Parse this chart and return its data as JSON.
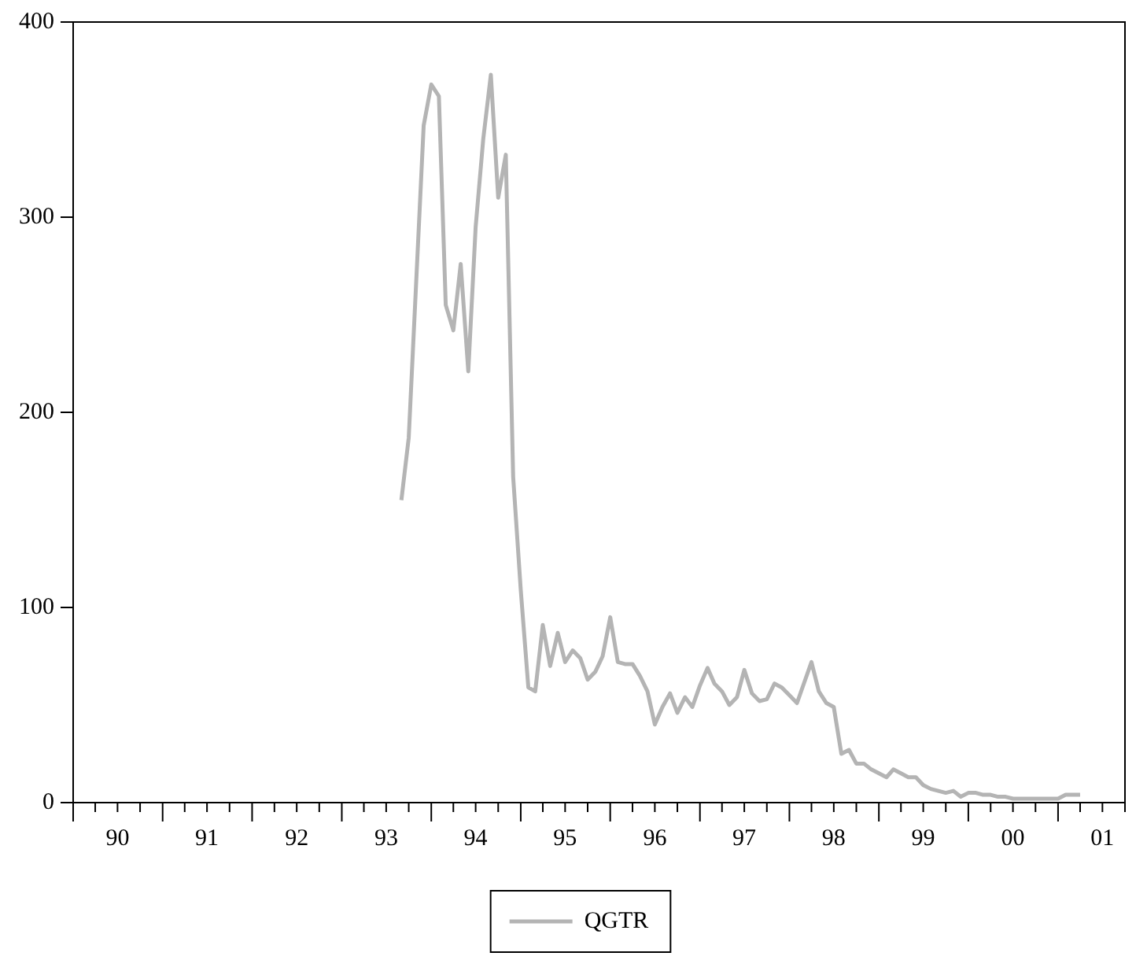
{
  "chart_data": {
    "type": "line",
    "x": [
      "1993-09",
      "1993-10",
      "1993-12",
      "1994-01",
      "1994-02",
      "1994-03",
      "1994-04",
      "1994-05",
      "1994-06",
      "1994-07",
      "1994-08",
      "1994-09",
      "1994-10",
      "1994-11",
      "1994-12",
      "1995-01",
      "1995-02",
      "1995-03",
      "1995-04",
      "1995-05",
      "1995-06",
      "1995-07",
      "1995-08",
      "1995-09",
      "1995-10",
      "1995-11",
      "1995-12",
      "1996-01",
      "1996-02",
      "1996-03",
      "1996-04",
      "1996-05",
      "1996-06",
      "1996-07",
      "1996-08",
      "1996-09",
      "1996-10",
      "1996-11",
      "1996-12",
      "1997-01",
      "1997-02",
      "1997-03",
      "1997-04",
      "1997-05",
      "1997-06",
      "1997-07",
      "1997-08",
      "1997-09",
      "1997-10",
      "1997-11",
      "1997-12",
      "1998-01",
      "1998-02",
      "1998-03",
      "1998-04",
      "1998-05",
      "1998-06",
      "1998-07",
      "1998-08",
      "1998-09",
      "1998-10",
      "1998-11",
      "1998-12",
      "1999-01",
      "1999-02",
      "1999-03",
      "1999-04",
      "1999-05",
      "1999-06",
      "1999-07",
      "1999-08",
      "1999-10",
      "1999-11",
      "1999-12",
      "2000-01",
      "2000-02",
      "2000-03",
      "2000-04",
      "2000-05",
      "2000-06",
      "2000-07",
      "2000-09",
      "2000-10",
      "2000-12",
      "2001-01",
      "2001-02",
      "2001-03",
      "2001-04"
    ],
    "series": [
      {
        "name": "QGTR",
        "color": "#b4b4b4",
        "values": [
          155,
          187,
          347,
          368,
          362,
          255,
          242,
          276,
          221,
          295,
          340,
          373,
          310,
          332,
          167,
          109,
          59,
          57,
          91,
          70,
          87,
          72,
          78,
          74,
          63,
          67,
          75,
          95,
          72,
          71,
          71,
          65,
          57,
          40,
          49,
          56,
          46,
          54,
          49,
          60,
          69,
          61,
          57,
          50,
          54,
          68,
          56,
          52,
          53,
          61,
          59,
          55,
          51,
          61,
          72,
          57,
          51,
          49,
          25,
          27,
          20,
          20,
          17,
          15,
          13,
          17,
          15,
          13,
          13,
          9,
          7,
          5,
          6,
          3,
          5,
          5,
          4,
          4,
          3,
          3,
          2,
          2,
          2,
          2,
          2,
          4,
          4,
          4
        ]
      }
    ],
    "xlim": [
      "1990-01",
      "2001-10"
    ],
    "xticks": [
      {
        "value": "1990-01",
        "label": null
      },
      {
        "value": "1990-04",
        "label": null
      },
      {
        "value": "1990-07",
        "label": "90"
      },
      {
        "value": "1990-10",
        "label": null
      },
      {
        "value": "1991-01",
        "label": null
      },
      {
        "value": "1991-04",
        "label": null
      },
      {
        "value": "1991-07",
        "label": "91"
      },
      {
        "value": "1991-10",
        "label": null
      },
      {
        "value": "1992-01",
        "label": null
      },
      {
        "value": "1992-04",
        "label": null
      },
      {
        "value": "1992-07",
        "label": "92"
      },
      {
        "value": "1992-10",
        "label": null
      },
      {
        "value": "1993-01",
        "label": null
      },
      {
        "value": "1993-04",
        "label": null
      },
      {
        "value": "1993-07",
        "label": "93"
      },
      {
        "value": "1993-10",
        "label": null
      },
      {
        "value": "1994-01",
        "label": null
      },
      {
        "value": "1994-04",
        "label": null
      },
      {
        "value": "1994-07",
        "label": "94"
      },
      {
        "value": "1994-10",
        "label": null
      },
      {
        "value": "1995-01",
        "label": null
      },
      {
        "value": "1995-04",
        "label": null
      },
      {
        "value": "1995-07",
        "label": "95"
      },
      {
        "value": "1995-10",
        "label": null
      },
      {
        "value": "1996-01",
        "label": null
      },
      {
        "value": "1996-04",
        "label": null
      },
      {
        "value": "1996-07",
        "label": "96"
      },
      {
        "value": "1996-10",
        "label": null
      },
      {
        "value": "1997-01",
        "label": null
      },
      {
        "value": "1997-04",
        "label": null
      },
      {
        "value": "1997-07",
        "label": "97"
      },
      {
        "value": "1997-10",
        "label": null
      },
      {
        "value": "1998-01",
        "label": null
      },
      {
        "value": "1998-04",
        "label": null
      },
      {
        "value": "1998-07",
        "label": "98"
      },
      {
        "value": "1998-10",
        "label": null
      },
      {
        "value": "1999-01",
        "label": null
      },
      {
        "value": "1999-04",
        "label": null
      },
      {
        "value": "1999-07",
        "label": "99"
      },
      {
        "value": "1999-10",
        "label": null
      },
      {
        "value": "2000-01",
        "label": null
      },
      {
        "value": "2000-04",
        "label": null
      },
      {
        "value": "2000-07",
        "label": "00"
      },
      {
        "value": "2000-10",
        "label": null
      },
      {
        "value": "2001-01",
        "label": null
      },
      {
        "value": "2001-04",
        "label": null
      },
      {
        "value": "2001-07",
        "label": "01"
      },
      {
        "value": "2001-10",
        "label": null
      }
    ],
    "ylim": [
      0,
      400
    ],
    "yticks": [
      0,
      100,
      200,
      300,
      400
    ],
    "grid": false,
    "legend": "bottom",
    "marker": "none",
    "line_style": "solid"
  }
}
